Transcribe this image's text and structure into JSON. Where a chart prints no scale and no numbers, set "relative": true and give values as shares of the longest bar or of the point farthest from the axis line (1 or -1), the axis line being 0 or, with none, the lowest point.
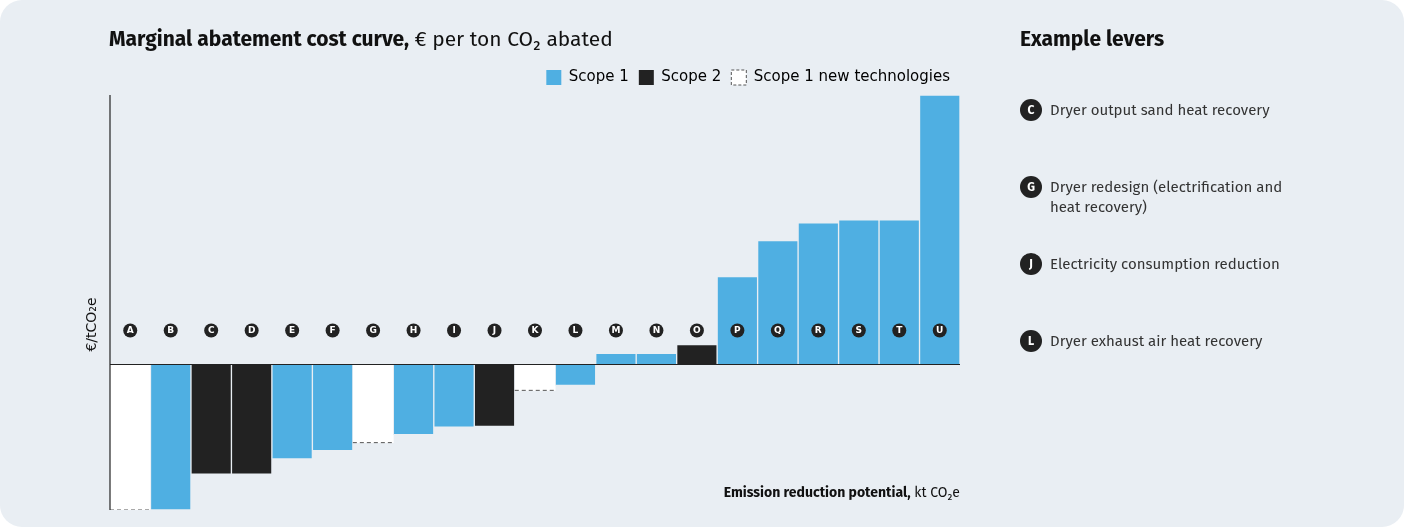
{
  "chart_data": [
    {
      "type": "bar",
      "title": "Marginal abatement cost curve, € per ton CO₂ abated",
      "xlabel": "Emission reduction potential, kt CO₂e",
      "ylabel": "€/tCO₂e",
      "relative": true,
      "legend": "top right",
      "categories": [
        "A",
        "B",
        "C",
        "D",
        "E",
        "F",
        "G",
        "H",
        "I",
        "J",
        "K",
        "L",
        "M",
        "N",
        "O",
        "P",
        "Q",
        "R",
        "S",
        "T",
        "U"
      ],
      "series": [
        {
          "name": "Scope 1",
          "color": "#4fafe2",
          "values": [
            null,
            -0.54,
            null,
            null,
            -0.35,
            -0.32,
            null,
            -0.26,
            -0.233,
            null,
            null,
            -0.078,
            0.041,
            0.041,
            null,
            0.326,
            0.46,
            0.526,
            0.537,
            0.537,
            1
          ]
        },
        {
          "name": "Scope 2",
          "color": "#222222",
          "values": [
            null,
            null,
            -0.407,
            -0.407,
            null,
            null,
            null,
            null,
            null,
            -0.23,
            null,
            null,
            null,
            null,
            0.074,
            null,
            null,
            null,
            null,
            null,
            null
          ]
        },
        {
          "name": "Scope 1 new technologies",
          "color": "#ffffff",
          "line_style": "dashed",
          "values": [
            -0.54,
            null,
            null,
            null,
            null,
            null,
            -0.29,
            null,
            null,
            null,
            -0.096,
            null,
            null,
            null,
            null,
            null,
            null,
            null,
            null,
            null,
            null
          ]
        }
      ]
    },
    {
      "type": "other",
      "title": "Example levers",
      "categories": [
        "C",
        "G",
        "J",
        "L"
      ],
      "annotations": [
        "Dryer output sand heat recovery",
        "Dryer redesign (electrification and heat recovery)",
        "Electricity consumption reduction",
        "Dryer exhaust air heat recovery"
      ]
    }
  ]
}
